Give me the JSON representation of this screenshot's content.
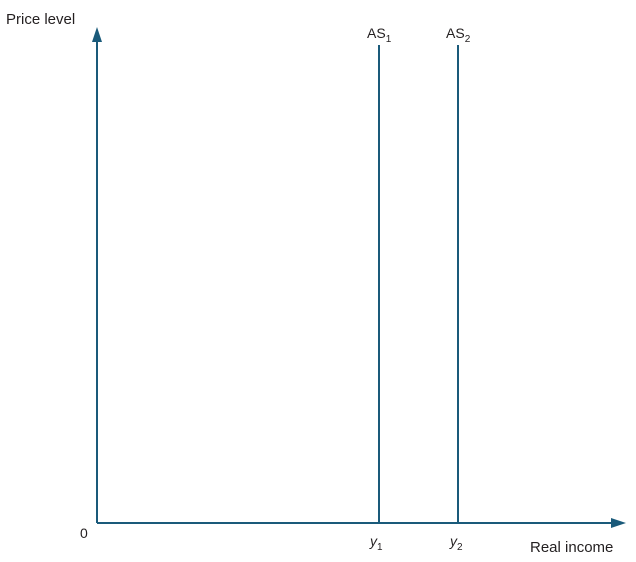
{
  "diagram": {
    "y_axis_label": "Price level",
    "x_axis_label": "Real income",
    "origin_label": "0",
    "curves": [
      {
        "name": "AS",
        "subscript": "1"
      },
      {
        "name": "AS",
        "subscript": "2"
      }
    ],
    "ticks": [
      {
        "name": "y",
        "subscript": "1"
      },
      {
        "name": "y",
        "subscript": "2"
      }
    ],
    "line_color": "#1a5a7a"
  }
}
